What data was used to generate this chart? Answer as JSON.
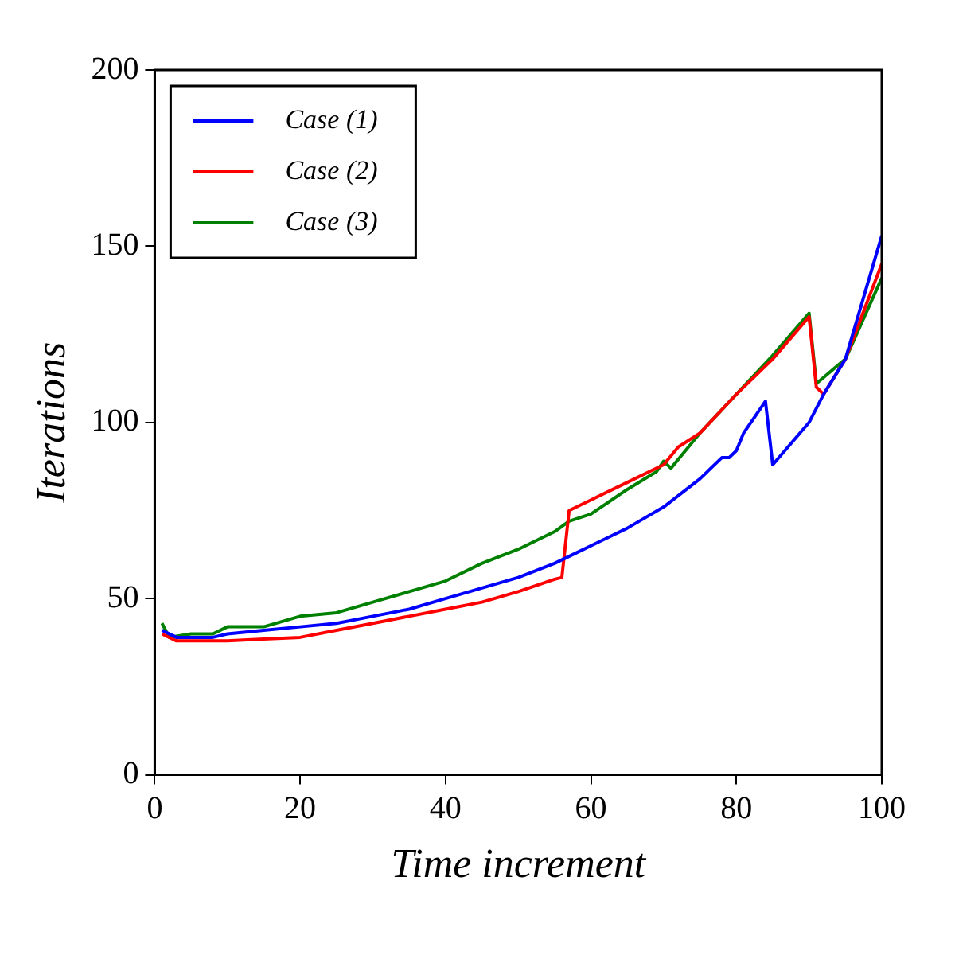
{
  "chart_data": {
    "type": "line",
    "xlabel": "Time increment",
    "ylabel": "Iterations",
    "xlim": [
      0,
      100
    ],
    "xticks": [
      0,
      20,
      40,
      60,
      80,
      100
    ],
    "ylim": [
      0,
      200
    ],
    "yticks": [
      0,
      50,
      100,
      150,
      200
    ],
    "grid": false,
    "legend": "top left",
    "marker": "none",
    "line_style": "solid",
    "series": [
      {
        "name": "Case (1)",
        "color": "#0000ff",
        "x": [
          1,
          3,
          8,
          10,
          15,
          20,
          25,
          30,
          35,
          40,
          45,
          50,
          55,
          58,
          60,
          65,
          70,
          75,
          77,
          78,
          79,
          80,
          81,
          84,
          85,
          90,
          92,
          95,
          100
        ],
        "values": [
          41,
          39,
          39,
          40,
          41,
          42,
          43,
          45,
          47,
          50,
          53,
          56,
          60,
          63,
          65,
          70,
          76,
          84,
          88,
          90,
          90,
          92,
          97,
          106,
          88,
          100,
          108,
          118,
          153
        ]
      },
      {
        "name": "Case (2)",
        "color": "#ff0000",
        "x": [
          1,
          3,
          10,
          15,
          20,
          25,
          30,
          35,
          40,
          45,
          50,
          55,
          56,
          57,
          60,
          65,
          68,
          70,
          72,
          75,
          80,
          85,
          90,
          91,
          92,
          95,
          100
        ],
        "values": [
          40,
          38,
          38,
          38.5,
          39,
          41,
          43,
          45,
          47,
          49,
          52,
          55.5,
          56,
          75,
          78,
          83,
          86,
          88,
          93,
          97,
          108,
          118,
          130,
          110,
          108,
          118,
          145
        ]
      },
      {
        "name": "Case (3)",
        "color": "#008000",
        "x": [
          1,
          2,
          5,
          8,
          10,
          15,
          20,
          25,
          30,
          35,
          40,
          45,
          50,
          55,
          57,
          60,
          65,
          69,
          70,
          71,
          73,
          75,
          80,
          85,
          90,
          91,
          95,
          100
        ],
        "values": [
          43,
          39,
          40,
          40,
          42,
          42,
          45,
          46,
          49,
          52,
          55,
          60,
          64,
          69,
          72,
          74,
          81,
          86,
          89,
          87,
          92,
          97,
          108,
          119,
          131,
          111,
          118,
          141
        ]
      }
    ]
  }
}
